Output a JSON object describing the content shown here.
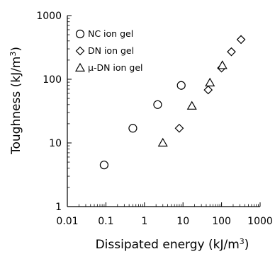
{
  "chart_data": {
    "type": "scatter",
    "title": "",
    "xlabel": "Dissipated energy (kJ/m",
    "xlabel_sup": "3",
    "xlabel_end": ")",
    "ylabel": "Toughness (kJ/m",
    "ylabel_sup": "3",
    "ylabel_end": ")",
    "xscale": "log",
    "yscale": "log",
    "xlim": [
      0.01,
      1000
    ],
    "ylim": [
      1,
      1000
    ],
    "x_ticks": [
      0.01,
      0.1,
      1,
      10,
      100,
      1000
    ],
    "x_tick_labels": [
      "0.01",
      "0.1",
      "1",
      "10",
      "100",
      "1000"
    ],
    "y_ticks": [
      1,
      10,
      100,
      1000
    ],
    "y_tick_labels": [
      "1",
      "10",
      "100",
      "1000"
    ],
    "grid": false,
    "legend_position": "top-left",
    "series": [
      {
        "name": "NC ion gel",
        "marker": "circle",
        "points": [
          [
            0.09,
            4.5
          ],
          [
            0.5,
            17
          ],
          [
            2.2,
            40
          ],
          [
            9,
            80
          ]
        ]
      },
      {
        "name": "DN ion gel",
        "marker": "diamond",
        "points": [
          [
            8,
            17
          ],
          [
            45,
            68
          ],
          [
            100,
            150
          ],
          [
            180,
            270
          ],
          [
            320,
            420
          ]
        ]
      },
      {
        "name": "μ-DN ion gel",
        "marker": "triangle",
        "points": [
          [
            3,
            10
          ],
          [
            17,
            38
          ],
          [
            50,
            88
          ],
          [
            105,
            165
          ]
        ]
      }
    ]
  }
}
